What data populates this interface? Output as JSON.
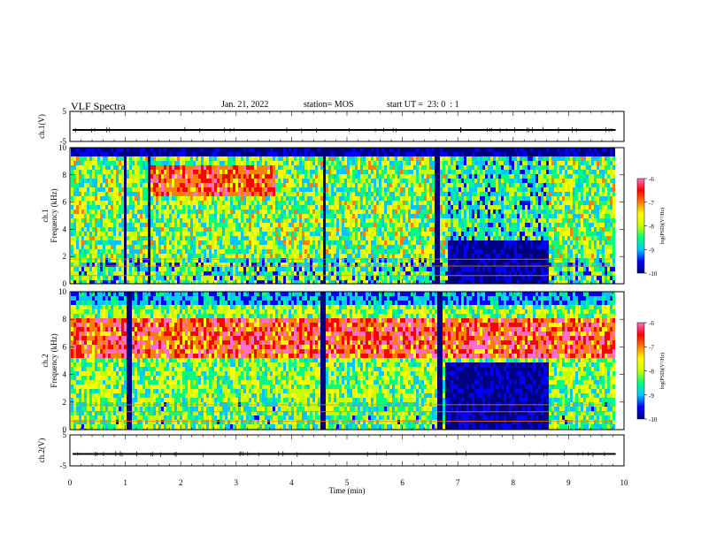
{
  "header": {
    "title": "VLF Spectra",
    "date": "Jan. 21, 2022",
    "station": "station= MOS",
    "start": "start UT =  23: 0  : 1"
  },
  "colors": {
    "cmap": [
      "#000000",
      "#000080",
      "#0000ff",
      "#00c8ff",
      "#00ff80",
      "#c8ff00",
      "#ffff00",
      "#ff8000",
      "#ff0000",
      "#ff6ec8"
    ]
  },
  "chart_data": [
    {
      "type": "line",
      "panel": "ch1-waveform",
      "ylabel": "ch.1(V)",
      "ylim": [
        -5,
        5
      ],
      "yticks": [
        "5",
        "-5"
      ],
      "x": [
        0,
        10
      ],
      "y": [
        0,
        0
      ],
      "xlim": [
        0,
        10
      ]
    },
    {
      "type": "heatmap",
      "panel": "ch1-spectrogram",
      "ylabel": "ch.1",
      "ylabel2": "Frequency (kHz)",
      "ylim": [
        0,
        10
      ],
      "yticks": [
        "0",
        "2",
        "4",
        "6",
        "8",
        "10"
      ],
      "xlim": [
        0,
        10
      ],
      "data_xmax": 9.8,
      "gaps": [
        [
          0.95,
          1.0
        ],
        [
          1.38,
          1.43
        ],
        [
          4.55,
          4.6
        ],
        [
          6.58,
          6.65
        ]
      ],
      "quiet": [
        [
          6.8,
          8.6
        ]
      ],
      "colorbar": {
        "label": "log(PSD)(V²/Hz)",
        "ticks": [
          "-6",
          "-7",
          "-8",
          "-9",
          "-10"
        ],
        "range": [
          -10,
          -6
        ]
      }
    },
    {
      "type": "heatmap",
      "panel": "ch2-spectrogram",
      "ylabel": "ch.2",
      "ylabel2": "Frequency (kHz)",
      "ylim": [
        0,
        10
      ],
      "yticks": [
        "0",
        "2",
        "4",
        "6",
        "8",
        "10"
      ],
      "xlim": [
        0,
        10
      ],
      "data_xmax": 9.8,
      "gaps": [
        [
          1.0,
          1.1
        ],
        [
          4.5,
          4.6
        ],
        [
          6.6,
          6.7
        ]
      ],
      "quiet": [
        [
          6.75,
          8.6
        ]
      ],
      "colorbar": {
        "label": "log(PSD)(V²/Hz)",
        "ticks": [
          "-6",
          "-7",
          "-8",
          "-9",
          "-10"
        ],
        "range": [
          -10,
          -6
        ]
      }
    },
    {
      "type": "line",
      "panel": "ch2-waveform",
      "ylabel": "ch.2(V)",
      "ylim": [
        -5,
        5
      ],
      "yticks": [
        "5",
        "-5"
      ],
      "x": [
        0,
        10
      ],
      "y": [
        0,
        0
      ],
      "xlim": [
        0,
        10
      ]
    }
  ],
  "x_axis": {
    "label": "Time (min)",
    "ticks": [
      "0",
      "1",
      "2",
      "3",
      "4",
      "5",
      "6",
      "7",
      "8",
      "9",
      "10"
    ]
  }
}
